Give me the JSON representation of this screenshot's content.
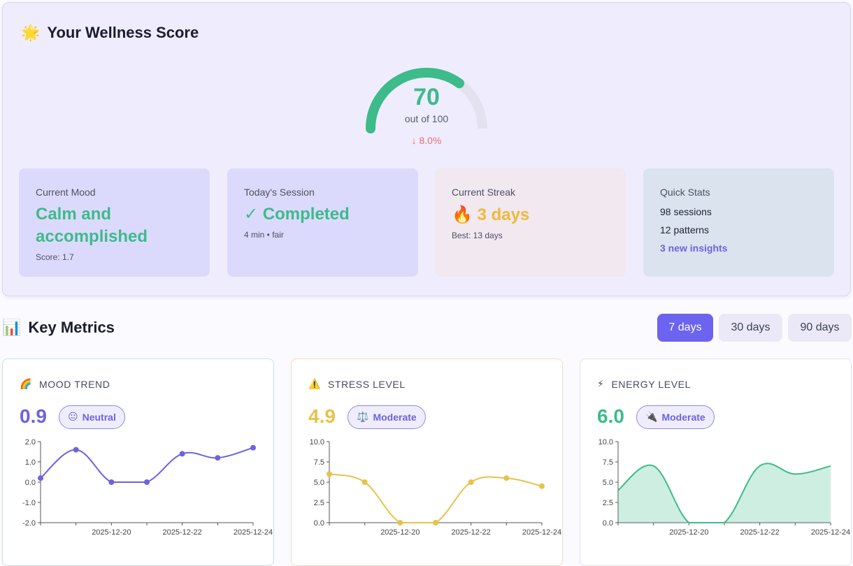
{
  "wellness": {
    "icon": "sparkle-star-icon",
    "icon_glyph": "🌟",
    "title": "Your Wellness Score",
    "score": "70",
    "score_value": 70,
    "score_max": 100,
    "score_sub": "out of 100",
    "change": "↓ 8.0%",
    "colors": {
      "gauge_fill": "#3dbb8a",
      "gauge_track": "#e4e2ee",
      "change": "#e46e6e"
    }
  },
  "cards": {
    "mood": {
      "label": "Current Mood",
      "value_line1": "Calm and",
      "value_line2": "accomplished",
      "detail": "Score: 1.7",
      "color": "#3dbb8a"
    },
    "session": {
      "label": "Today's Session",
      "value": "✓ Completed",
      "detail": "4 min • fair",
      "color": "#3dbb8a"
    },
    "streak": {
      "label": "Current Streak",
      "icon_glyph": "🔥",
      "value": "3 days",
      "detail": "Best: 13 days",
      "color": "#f0b93a"
    },
    "quick": {
      "label": "Quick Stats",
      "sessions": "98 sessions",
      "patterns": "12 patterns",
      "insights": "3 new insights"
    }
  },
  "key_metrics": {
    "icon": "bar-chart-icon",
    "icon_glyph": "📊",
    "title": "Key Metrics",
    "ranges": [
      "7 days",
      "30 days",
      "90 days"
    ],
    "selected_range": "7 days"
  },
  "metrics": [
    {
      "id": "mood",
      "icon": "rainbow-icon",
      "icon_glyph": "🌈",
      "title": "MOOD TREND",
      "value": "0.9",
      "badge_glyph": "😐",
      "badge": "Neutral",
      "color": "#6c63e0",
      "border": "#c6e3dc"
    },
    {
      "id": "stress",
      "icon": "warning-icon",
      "icon_glyph": "⚠️",
      "title": "STRESS LEVEL",
      "value": "4.9",
      "badge_glyph": "⚖️",
      "badge": "Moderate",
      "color": "#e8c24a",
      "border": "#f4dcc8"
    },
    {
      "id": "energy",
      "icon": "lightning-icon",
      "icon_glyph": "⚡",
      "title": "ENERGY LEVEL",
      "value": "6.0",
      "badge_glyph": "🔌",
      "badge": "Moderate",
      "color": "#3dbb8a",
      "border": "#e3e3ea"
    }
  ],
  "chart_data": [
    {
      "type": "line",
      "x": [
        "2025-12-18",
        "2025-12-19",
        "2025-12-20",
        "2025-12-21",
        "2025-12-22",
        "2025-12-23",
        "2025-12-24"
      ],
      "x_tick_labels": [
        "2025-12-20",
        "2025-12-22",
        "2025-12-24"
      ],
      "series": [
        {
          "values": [
            0.2,
            1.6,
            0.0,
            0.0,
            1.4,
            1.2,
            1.7
          ]
        }
      ],
      "ylim": [
        -2,
        2
      ],
      "y_ticks": [
        "2.0",
        "1.0",
        "0.0",
        "-1.0",
        "-2.0"
      ],
      "markers": true
    },
    {
      "type": "line",
      "x": [
        "2025-12-18",
        "2025-12-19",
        "2025-12-20",
        "2025-12-21",
        "2025-12-22",
        "2025-12-23",
        "2025-12-24"
      ],
      "x_tick_labels": [
        "2025-12-20",
        "2025-12-22",
        "2025-12-24"
      ],
      "series": [
        {
          "values": [
            6.0,
            5.0,
            0.0,
            0.0,
            5.0,
            5.5,
            4.5
          ]
        }
      ],
      "ylim": [
        0,
        10
      ],
      "y_ticks": [
        "10.0",
        "7.5",
        "5.0",
        "2.5",
        "0.0"
      ],
      "markers": true
    },
    {
      "type": "area",
      "x": [
        "2025-12-18",
        "2025-12-19",
        "2025-12-20",
        "2025-12-21",
        "2025-12-22",
        "2025-12-23",
        "2025-12-24"
      ],
      "x_tick_labels": [
        "2025-12-20",
        "2025-12-22",
        "2025-12-24"
      ],
      "series": [
        {
          "values": [
            4.0,
            7.0,
            0.0,
            0.0,
            7.0,
            6.0,
            7.0
          ]
        }
      ],
      "ylim": [
        0,
        10
      ],
      "y_ticks": [
        "10.0",
        "7.5",
        "5.0",
        "2.5",
        "0.0"
      ],
      "markers": false
    }
  ]
}
